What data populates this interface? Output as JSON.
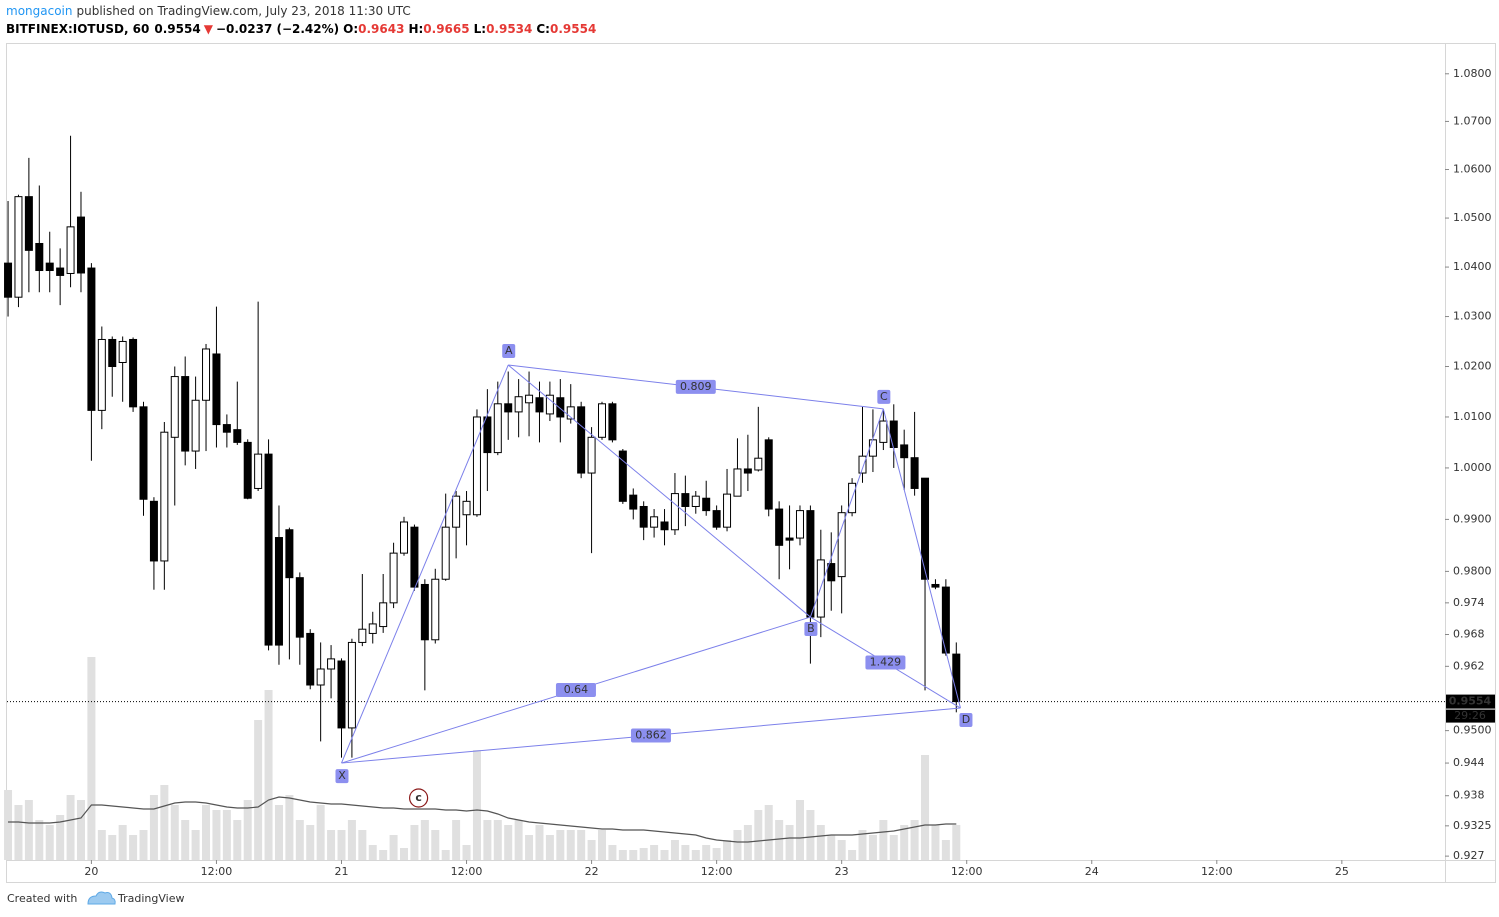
{
  "header": {
    "author": "mongacoin",
    "published": "published on TradingView.com, July 23, 2018 11:30 UTC",
    "symbol": "BITFINEX:IOTUSD, 60",
    "last": "0.9554",
    "arrow": "▼",
    "change": "−0.0237 (−2.42%)",
    "ohlc": [
      {
        "key": "O:",
        "value": "0.9643"
      },
      {
        "key": "H:",
        "value": "0.9665"
      },
      {
        "key": "L:",
        "value": "0.9534"
      },
      {
        "key": "C:",
        "value": "0.9554"
      }
    ]
  },
  "footer": {
    "created": "Created with",
    "brand": "TradingView"
  },
  "chart_data": {
    "type": "candlestick",
    "log": true,
    "grid": false,
    "up_color": "#ffffff",
    "down_color": "#000000",
    "wick_color": "#000000",
    "volume_color": "#e0e0e0",
    "volume_ma_color": "#555555",
    "pattern_color": "#7c80ea",
    "xlim": [
      -0.1,
      137.9
    ],
    "ylim": [
      0.9263,
      1.0863
    ],
    "xticks": [
      {
        "value": 8,
        "label": "20"
      },
      {
        "value": 20,
        "label": "12:00"
      },
      {
        "value": 32,
        "label": "21"
      },
      {
        "value": 44,
        "label": "12:00"
      },
      {
        "value": 56,
        "label": "22"
      },
      {
        "value": 68,
        "label": "12:00"
      },
      {
        "value": 80,
        "label": "23"
      },
      {
        "value": 92,
        "label": "12:00"
      },
      {
        "value": 104,
        "label": "24"
      },
      {
        "value": 116,
        "label": "12:00"
      },
      {
        "value": 128,
        "label": "25"
      }
    ],
    "yticks": [
      {
        "value": 1.08,
        "label": "1.0800"
      },
      {
        "value": 1.07,
        "label": "1.0700"
      },
      {
        "value": 1.06,
        "label": "1.0600"
      },
      {
        "value": 1.05,
        "label": "1.0500"
      },
      {
        "value": 1.04,
        "label": "1.0400"
      },
      {
        "value": 1.03,
        "label": "1.0300"
      },
      {
        "value": 1.02,
        "label": "1.0200"
      },
      {
        "value": 1.01,
        "label": "1.0100"
      },
      {
        "value": 1.0,
        "label": "1.0000"
      },
      {
        "value": 0.99,
        "label": "0.9900"
      },
      {
        "value": 0.98,
        "label": "0.9800"
      },
      0.974,
      0.968,
      0.962,
      {
        "value": 0.95,
        "label": "0.9500"
      },
      0.944,
      0.938,
      0.9325,
      0.927
    ],
    "last_price": 0.9554,
    "countdown": "29:26",
    "event_marker": "c",
    "event_x": 39.4,
    "open": [
      1.0408,
      1.0339,
      1.0544,
      1.0448,
      1.0408,
      1.0398,
      1.0387,
      1.0502,
      1.0398,
      1.0113,
      1.0254,
      1.0208,
      1.0254,
      1.012,
      0.9935,
      0.982,
      1.006,
      1.018,
      1.0033,
      1.0133,
      1.0225,
      1.0085,
      1.0075,
      1.005,
      0.996,
      1.0027,
      0.9865,
      0.988,
      0.9788,
      0.9682,
      0.9585,
      0.9615,
      0.963,
      0.9505,
      0.9665,
      0.9682,
      0.9695,
      0.974,
      0.9835,
      0.9885,
      0.9775,
      0.967,
      0.9785,
      0.9885,
      0.9909,
      0.9909,
      1.01,
      1.003,
      1.0126,
      1.011,
      1.0128,
      1.0138,
      1.0106,
      1.0138,
      1.0096,
      1.012,
      0.999,
      1.006,
      1.0126,
      1.0033,
      0.9947,
      0.9925,
      0.9885,
      0.9895,
      0.988,
      0.995,
      0.9925,
      0.9941,
      0.9917,
      0.9885,
      0.9945,
      0.9998,
      0.9996,
      1.0055,
      0.992,
      0.9864,
      0.9864,
      0.9917,
      0.9713,
      0.9815,
      0.979,
      0.9913,
      0.999,
      1.0023,
      1.005,
      1.0092,
      1.0045,
      1.002,
      0.998,
      0.9775,
      0.977,
      0.9643
    ],
    "high": [
      1.0535,
      1.0548,
      1.0624,
      1.0567,
      1.0472,
      1.0438,
      1.067,
      1.0554,
      1.0408,
      1.028,
      1.026,
      1.026,
      1.0258,
      1.013,
      0.9943,
      1.009,
      1.02,
      1.022,
      1.018,
      1.0245,
      1.032,
      1.0105,
      1.017,
      1.0056,
      1.033,
      1.0056,
      0.9927,
      0.9884,
      0.9798,
      0.969,
      0.9665,
      0.966,
      0.9635,
      0.9672,
      0.9795,
      0.9723,
      0.9795,
      0.9855,
      0.9905,
      0.989,
      0.9785,
      0.9805,
      0.995,
      0.9955,
      0.9955,
      1.0115,
      1.0155,
      1.017,
      1.019,
      1.0175,
      1.019,
      1.017,
      1.017,
      1.0175,
      1.0165,
      1.013,
      1.008,
      1.013,
      1.013,
      1.0037,
      0.996,
      0.9935,
      0.992,
      0.992,
      0.999,
      0.9985,
      0.9955,
      0.9975,
      0.9927,
      0.9998,
      1.0058,
      1.0065,
      1.012,
      1.006,
      0.9935,
      0.9927,
      0.9927,
      0.9927,
      0.988,
      0.9875,
      0.9927,
      0.998,
      1.012,
      1.0115,
      1.0115,
      1.0125,
      1.0075,
      1.011,
      0.998,
      0.9785,
      0.9785,
      0.9665
    ],
    "low": [
      1.03,
      1.0319,
      1.0349,
      1.0349,
      1.0349,
      1.0323,
      1.0359,
      1.0349,
      1.0014,
      1.0076,
      1.014,
      1.013,
      1.011,
      0.9907,
      0.9765,
      0.9765,
      0.9927,
      1.0005,
      0.9998,
      1.0033,
      1.004,
      1.004,
      1.0045,
      0.9939,
      0.9955,
      0.965,
      0.9623,
      0.9633,
      0.9623,
      0.9577,
      0.948,
      0.956,
      0.945,
      0.945,
      0.9658,
      0.9663,
      0.9683,
      0.973,
      0.983,
      0.9763,
      0.9575,
      0.9663,
      0.9782,
      0.9825,
      0.985,
      0.9905,
      0.9955,
      1.0025,
      1.0055,
      1.006,
      1.0062,
      1.005,
      1.0092,
      1.005,
      1.0087,
      0.998,
      0.9835,
      1.0055,
      1.005,
      0.993,
      0.99,
      0.986,
      0.9865,
      0.985,
      0.987,
      0.9887,
      0.9911,
      0.9907,
      0.988,
      0.9877,
      0.9955,
      0.9955,
      0.9993,
      0.9906,
      0.9785,
      0.9804,
      0.985,
      0.9625,
      0.9675,
      0.9725,
      0.972,
      0.9906,
      0.9971,
      0.9992,
      1.0035,
      1.0,
      0.9957,
      0.9946,
      0.9575,
      0.9766,
      0.964,
      0.9534
    ],
    "close": [
      1.0339,
      1.0544,
      1.0434,
      1.0393,
      1.0393,
      1.0383,
      1.0482,
      1.0388,
      1.0113,
      1.0254,
      1.02,
      1.025,
      1.012,
      0.9939,
      0.982,
      1.007,
      1.018,
      1.0033,
      1.0133,
      1.0235,
      1.0085,
      1.007,
      1.005,
      0.9941,
      1.0027,
      0.966,
      0.966,
      0.9788,
      0.9675,
      0.9585,
      0.9615,
      0.9634,
      0.9505,
      0.9665,
      0.969,
      0.97,
      0.974,
      0.9835,
      0.9895,
      0.977,
      0.967,
      0.9785,
      0.9885,
      0.9945,
      0.9935,
      1.01,
      1.003,
      1.0126,
      1.011,
      1.014,
      1.0143,
      1.011,
      1.0143,
      1.01,
      1.012,
      0.999,
      1.006,
      1.0126,
      1.0055,
      0.9935,
      0.992,
      0.9885,
      0.9905,
      0.988,
      0.995,
      0.9925,
      0.9945,
      0.9917,
      0.9885,
      0.9949,
      0.9998,
      0.999,
      1.0019,
      0.992,
      0.985,
      0.986,
      0.9917,
      0.9713,
      0.9822,
      0.9782,
      0.9913,
      0.997,
      1.0023,
      1.0055,
      1.0092,
      1.004,
      1.002,
      0.996,
      0.9785,
      0.977,
      0.9645,
      0.9554
    ],
    "volume": [
      70,
      55,
      60,
      40,
      35,
      45,
      65,
      60,
      203,
      30,
      25,
      35,
      25,
      30,
      65,
      75,
      55,
      40,
      30,
      55,
      50,
      50,
      40,
      60,
      140,
      170,
      55,
      65,
      40,
      35,
      55,
      30,
      30,
      40,
      30,
      15,
      10,
      25,
      12,
      35,
      40,
      30,
      10,
      40,
      15,
      110,
      40,
      40,
      35,
      40,
      25,
      35,
      25,
      30,
      30,
      30,
      20,
      30,
      15,
      10,
      10,
      12,
      15,
      10,
      20,
      15,
      10,
      15,
      12,
      20,
      30,
      35,
      50,
      55,
      40,
      35,
      60,
      50,
      35,
      25,
      20,
      10,
      30,
      25,
      40,
      25,
      35,
      40,
      105,
      35,
      20,
      35
    ],
    "volume_ma": [
      38,
      38,
      37,
      37,
      37,
      38,
      40,
      42,
      55,
      55,
      54,
      53,
      52,
      51,
      51,
      54,
      57,
      58,
      58,
      57,
      55,
      53,
      52,
      52,
      53,
      60,
      63,
      62,
      60,
      58,
      57,
      56,
      56,
      55,
      54,
      53,
      52,
      52,
      51,
      51,
      51,
      51,
      50,
      50,
      49,
      50,
      49,
      46,
      42,
      40,
      38,
      37,
      36,
      35,
      34,
      33,
      32,
      31,
      31,
      30,
      30,
      30,
      29,
      28,
      27,
      26,
      25,
      22,
      20,
      19,
      18,
      18,
      19,
      20,
      21,
      22,
      22,
      23,
      24,
      25,
      25,
      25,
      26,
      27,
      28,
      29,
      31,
      33,
      35,
      35,
      36,
      36
    ],
    "pattern": {
      "points": [
        {
          "label": "X",
          "x": 32,
          "price": 0.944
        },
        {
          "label": "A",
          "x": 48,
          "price": 1.0203
        },
        {
          "label": "B",
          "x": 77,
          "price": 0.9713
        },
        {
          "label": "C",
          "x": 84,
          "price": 1.0116
        },
        {
          "label": "D",
          "x": 91.4,
          "price": 0.9542
        }
      ],
      "ratios": [
        {
          "value": 0.809,
          "from": "A",
          "to": "C"
        },
        {
          "value": 0.64,
          "from": "X",
          "to": "B"
        },
        {
          "value": 1.429,
          "from": "B",
          "to": "D"
        },
        {
          "value": 0.862,
          "from": "X",
          "to": "D"
        }
      ]
    }
  }
}
